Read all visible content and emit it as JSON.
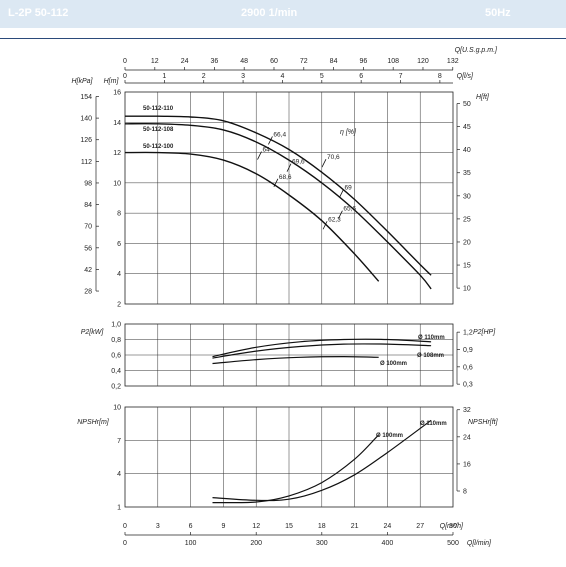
{
  "header": {
    "model": "L-2P 50-112",
    "speed": "2900 1/min",
    "frequency": "50Hz"
  },
  "chart_data": [
    {
      "type": "line",
      "x_axes": {
        "q_m3h": {
          "label": "Q[m³/h]",
          "ticks": [
            0,
            3,
            6,
            9,
            12,
            15,
            18,
            21,
            24,
            27,
            30
          ],
          "range": [
            0,
            30
          ]
        },
        "q_lmin": {
          "label": "Q[l/min]",
          "ticks": [
            0,
            100,
            200,
            300,
            400,
            500
          ]
        },
        "q_usgpm": {
          "label": "Q[U.S.g.p.m.]",
          "ticks": [
            0,
            12,
            24,
            36,
            48,
            60,
            72,
            84,
            96,
            108,
            120,
            132
          ]
        },
        "q_ls": {
          "label": "Q[l/s]",
          "ticks": [
            0,
            1,
            2,
            3,
            4,
            5,
            6,
            7,
            8
          ]
        }
      },
      "y_axes": {
        "h_m": {
          "label": "H[m]",
          "ticks": [
            2,
            4,
            6,
            8,
            10,
            12,
            14,
            16
          ],
          "range": [
            2,
            16
          ]
        },
        "h_kpa": {
          "label": "H[kPa]",
          "ticks": [
            28,
            42,
            56,
            70,
            84,
            98,
            112,
            126,
            140,
            154
          ]
        },
        "h_ft": {
          "label": "H[ft]",
          "ticks": [
            10,
            15,
            20,
            25,
            30,
            35,
            40,
            45,
            50
          ]
        }
      },
      "efficiency_label": "η [%]",
      "series": [
        {
          "name": "50-112-110",
          "x": [
            0,
            3,
            6,
            9,
            12,
            15,
            18,
            21,
            24,
            27,
            28
          ],
          "y": [
            14.4,
            14.4,
            14.35,
            14.1,
            13.3,
            12.2,
            10.7,
            8.9,
            6.8,
            4.6,
            3.9
          ]
        },
        {
          "name": "50-112-108",
          "x": [
            0,
            3,
            6,
            9,
            12,
            15,
            18,
            21,
            24,
            27,
            28
          ],
          "y": [
            13.9,
            13.9,
            13.8,
            13.5,
            12.7,
            11.5,
            10.0,
            8.2,
            6.1,
            3.9,
            3.0
          ]
        },
        {
          "name": "50-112-100",
          "x": [
            0,
            3,
            6,
            9,
            12,
            15,
            18,
            21,
            23.2
          ],
          "y": [
            12.0,
            12.0,
            11.9,
            11.5,
            10.6,
            9.2,
            7.5,
            5.3,
            3.5
          ]
        }
      ],
      "efficiency_points": [
        {
          "label": "66,4",
          "x": 13.3,
          "y": 12.8
        },
        {
          "label": "64",
          "x": 12.3,
          "y": 11.8
        },
        {
          "label": "69,6",
          "x": 15.0,
          "y": 11.0
        },
        {
          "label": "68,6",
          "x": 13.8,
          "y": 10.0
        },
        {
          "label": "70,6",
          "x": 18.2,
          "y": 11.3
        },
        {
          "label": "69",
          "x": 19.8,
          "y": 9.3
        },
        {
          "label": "65,6",
          "x": 19.7,
          "y": 7.9
        },
        {
          "label": "62,3",
          "x": 18.3,
          "y": 7.2
        }
      ]
    },
    {
      "type": "line",
      "y_axes": {
        "p2_kw": {
          "label": "P2[kW]",
          "ticks": [
            0.2,
            0.4,
            0.6,
            0.8,
            1.0
          ],
          "tick_labels": [
            "0,2",
            "0,4",
            "0,6",
            "0,8",
            "1,0"
          ],
          "range": [
            0.2,
            1.0
          ]
        },
        "p2_hp": {
          "label": "P2[HP]",
          "ticks": [
            0.3,
            0.6,
            0.9,
            1.2
          ],
          "tick_labels": [
            "0,3",
            "0,6",
            "0,9",
            "1,2"
          ]
        }
      },
      "series": [
        {
          "name": "Ø 110mm",
          "x": [
            8,
            12,
            16,
            20,
            24,
            28
          ],
          "y": [
            0.58,
            0.7,
            0.77,
            0.8,
            0.8,
            0.77
          ]
        },
        {
          "name": "Ø 108mm",
          "x": [
            8,
            12,
            16,
            20,
            24,
            28
          ],
          "y": [
            0.56,
            0.65,
            0.71,
            0.74,
            0.74,
            0.72
          ]
        },
        {
          "name": "Ø 100mm",
          "x": [
            8,
            12,
            16,
            20,
            23.2
          ],
          "y": [
            0.49,
            0.54,
            0.57,
            0.58,
            0.57
          ]
        }
      ]
    },
    {
      "type": "line",
      "y_axes": {
        "npsh_m": {
          "label": "NPSHr[m]",
          "ticks": [
            1,
            4,
            7,
            10
          ],
          "range": [
            1,
            10
          ]
        },
        "npsh_ft": {
          "label": "NPSHr[ft]",
          "ticks": [
            8,
            16,
            24,
            32
          ]
        }
      },
      "series": [
        {
          "name": "Ø 110mm",
          "x": [
            8,
            12,
            15,
            18,
            21,
            24,
            28
          ],
          "y": [
            1.85,
            1.6,
            1.7,
            2.5,
            3.9,
            5.9,
            8.8
          ]
        },
        {
          "name": "Ø 100mm",
          "x": [
            8,
            12,
            15,
            18,
            21,
            23.2
          ],
          "y": [
            1.4,
            1.45,
            2.0,
            3.2,
            5.3,
            7.5
          ]
        }
      ]
    }
  ]
}
